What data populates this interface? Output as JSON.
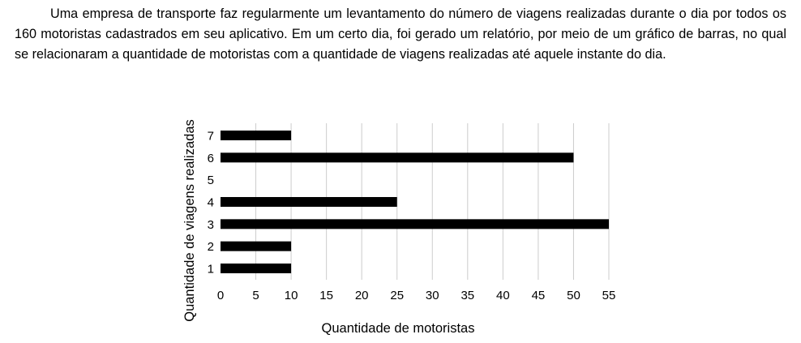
{
  "question": {
    "text": "Uma empresa de transporte faz regularmente um levantamento do número de viagens realizadas durante o dia por todos os 160 motoristas cadastrados em seu aplicativo. Em um certo dia, foi gerado um relatório, por meio de um gráfico de barras, no qual se relacionaram a quantidade de motoristas com a quantidade de viagens realizadas até aquele instante do dia."
  },
  "chart_data": {
    "type": "bar",
    "orientation": "horizontal",
    "categories": [
      "1",
      "2",
      "3",
      "4",
      "5",
      "6",
      "7"
    ],
    "values": [
      10,
      10,
      55,
      25,
      0,
      50,
      10
    ],
    "xlabel": "Quantidade de motoristas",
    "ylabel": "Quantidade de viagens realizadas",
    "xlim": [
      0,
      55
    ],
    "xticks": [
      0,
      5,
      10,
      15,
      20,
      25,
      30,
      35,
      40,
      45,
      50,
      55
    ],
    "grid": "vertical",
    "bar_color": "#000000",
    "grid_color": "#cccccc"
  }
}
